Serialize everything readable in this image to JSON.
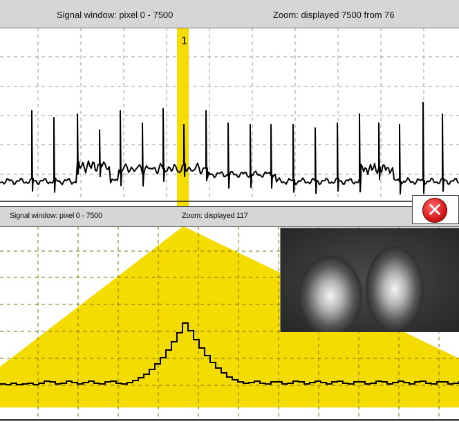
{
  "top_panel": {
    "title": "Signal window:  pixel 0 - 7500",
    "zoom_label": "Zoom: displayed 7500 from 76",
    "marker_label": "1"
  },
  "bottom_panel": {
    "title": "Signal window: pixel 0 - 7500",
    "zoom_label": "Zoom: displayed 117"
  },
  "thumbnail": {
    "icon": "camera-image-icon"
  },
  "close_button": {
    "icon": "close-icon",
    "symbol": "✕"
  },
  "colors": {
    "highlight": "#f5dc00",
    "signal": "#000000",
    "grid": "#9a9a9a",
    "header": "#d6d6d6"
  }
}
